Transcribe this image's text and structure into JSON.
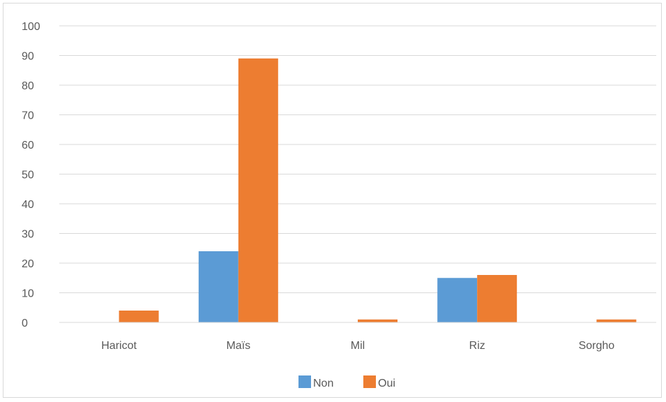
{
  "chart_data": {
    "type": "bar",
    "title": "",
    "xlabel": "",
    "ylabel": "",
    "categories": [
      "Haricot",
      "Maïs",
      "Mil",
      "Riz",
      "Sorgho"
    ],
    "series": [
      {
        "name": "Non",
        "color": "#5b9bd5",
        "values": [
          0,
          24,
          0,
          15,
          0
        ]
      },
      {
        "name": "Oui",
        "color": "#ed7d31",
        "values": [
          4,
          89,
          1,
          16,
          1
        ]
      }
    ],
    "ylim": [
      0,
      100
    ],
    "yticks": [
      0,
      10,
      20,
      30,
      40,
      50,
      60,
      70,
      80,
      90,
      100
    ],
    "grid": true,
    "legend_position": "bottom"
  }
}
